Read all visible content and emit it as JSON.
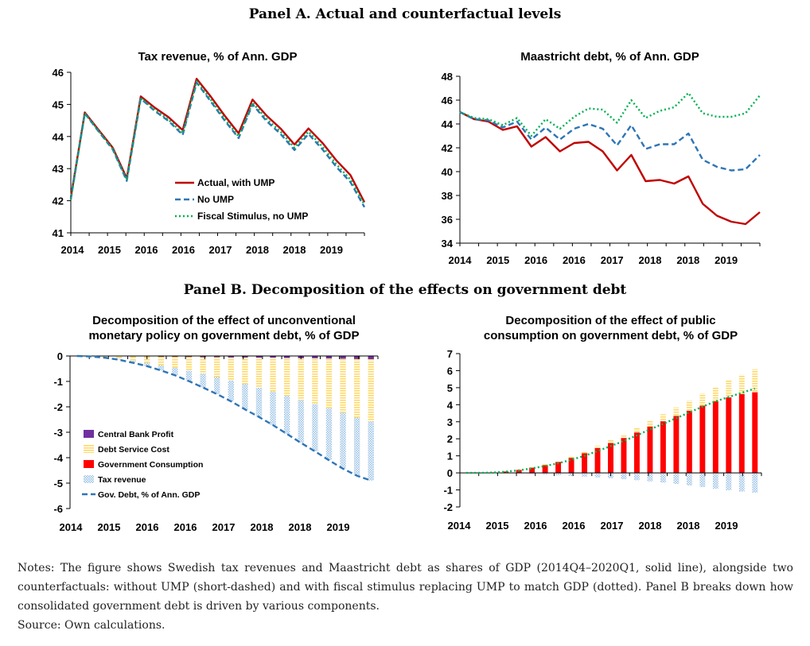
{
  "panel_a_title": "Panel A. Actual and counterfactual levels",
  "panel_b_title": "Panel B. Decomposition of the effects on government debt",
  "notes": "Notes: The figure shows Swedish tax revenues and Maastricht debt as shares of GDP (2014Q4–2020Q1, solid line), alongside two counterfactuals: without UMP (short-dashed) and with fiscal stimulus replacing UMP to match GDP (dotted). Panel B breaks down how consolidated government debt is driven by various components.",
  "source": "Source: Own calculations.",
  "colors": {
    "actual": "#c00000",
    "no_ump": "#2e75b6",
    "fiscal": "#00b050",
    "cb_profit": "#7030a0",
    "debt_service": "#ffd966",
    "gov_consumption": "#ff0000",
    "tax_revenue": "#9dc3e6",
    "gov_debt": "#2e75b6"
  },
  "chart_data": [
    {
      "id": "tax",
      "type": "line",
      "title": "Tax revenue, % of Ann. GDP",
      "xlabel": "",
      "ylabel": "",
      "x_tick_labels": [
        "2014",
        "2015",
        "2016",
        "2016",
        "2017",
        "2018",
        "2018",
        "2019"
      ],
      "ylim": [
        41,
        46
      ],
      "yticks": [
        41,
        42,
        43,
        44,
        45,
        46
      ],
      "grid": false,
      "legend_position": "bottom-center",
      "series": [
        {
          "name": "Actual, with UMP",
          "color": "#c00000",
          "style": "solid",
          "values": [
            42.1,
            44.75,
            44.2,
            43.65,
            42.7,
            45.25,
            44.9,
            44.6,
            44.2,
            45.8,
            45.25,
            44.65,
            44.1,
            45.15,
            44.65,
            44.25,
            43.75,
            44.25,
            43.8,
            43.25,
            42.8,
            41.95
          ]
        },
        {
          "name": "No UMP",
          "color": "#2e75b6",
          "style": "dashed",
          "values": [
            42.05,
            44.72,
            44.15,
            43.6,
            42.62,
            45.18,
            44.8,
            44.48,
            44.05,
            45.68,
            45.1,
            44.5,
            43.95,
            45.0,
            44.48,
            44.08,
            43.58,
            44.08,
            43.6,
            43.05,
            42.58,
            41.8
          ]
        },
        {
          "name": "Fiscal Stimulus, no UMP",
          "color": "#00b050",
          "style": "dotted",
          "values": [
            42.05,
            44.73,
            44.17,
            43.62,
            42.65,
            45.2,
            44.83,
            44.52,
            44.1,
            45.72,
            45.15,
            44.55,
            44.0,
            45.05,
            44.55,
            44.15,
            43.65,
            44.15,
            43.68,
            43.13,
            42.66,
            41.88
          ]
        }
      ]
    },
    {
      "id": "debt",
      "type": "line",
      "title": "Maastricht debt, % of Ann. GDP",
      "xlabel": "",
      "ylabel": "",
      "x_tick_labels": [
        "2014",
        "2015",
        "2016",
        "2016",
        "2017",
        "2018",
        "2018",
        "2019"
      ],
      "ylim": [
        34,
        48
      ],
      "yticks": [
        34,
        36,
        38,
        40,
        42,
        44,
        46,
        48
      ],
      "grid": false,
      "series": [
        {
          "name": "Actual, with UMP",
          "color": "#c00000",
          "style": "solid",
          "values": [
            45.0,
            44.4,
            44.2,
            43.5,
            43.8,
            42.1,
            42.9,
            41.7,
            42.4,
            42.5,
            41.7,
            40.1,
            41.4,
            39.2,
            39.3,
            39.0,
            39.6,
            37.3,
            36.3,
            35.8,
            35.6,
            36.6
          ]
        },
        {
          "name": "No UMP",
          "color": "#2e75b6",
          "style": "dashed",
          "values": [
            45.0,
            44.4,
            44.3,
            43.7,
            44.2,
            42.7,
            43.7,
            42.7,
            43.6,
            44.0,
            43.6,
            42.2,
            43.9,
            41.9,
            42.3,
            42.3,
            43.2,
            41.0,
            40.4,
            40.1,
            40.2,
            41.4
          ]
        },
        {
          "name": "Fiscal Stimulus, no UMP",
          "color": "#00b050",
          "style": "dotted",
          "values": [
            45.0,
            44.5,
            44.4,
            43.9,
            44.5,
            43.0,
            44.4,
            43.6,
            44.6,
            45.3,
            45.2,
            44.1,
            46.0,
            44.5,
            45.1,
            45.4,
            46.6,
            44.9,
            44.6,
            44.6,
            44.9,
            46.4
          ]
        }
      ]
    },
    {
      "id": "ump",
      "type": "bar",
      "title": "Decomposition of the effect of unconventional monetary policy on government debt, % of GDP",
      "title_lines": [
        "Decomposition of the effect of unconventional",
        "monetary policy on government debt, % of GDP"
      ],
      "xlabel": "",
      "ylabel": "",
      "x_tick_labels": [
        "2014",
        "2015",
        "2016",
        "2016",
        "2017",
        "2018",
        "2018",
        "2019"
      ],
      "ylim": [
        -6,
        0
      ],
      "yticks": [
        -6,
        -5,
        -4,
        -3,
        -2,
        -1,
        0
      ],
      "grid": false,
      "legend_position": "bottom-left",
      "series": [
        {
          "name": "Central Bank Profit",
          "color": "#7030a0",
          "kind": "bar",
          "pattern": "solid",
          "values": [
            0,
            0,
            0,
            0,
            -0.02,
            -0.02,
            -0.03,
            -0.03,
            -0.04,
            -0.05,
            -0.05,
            -0.06,
            -0.06,
            -0.07,
            -0.07,
            -0.08,
            -0.09,
            -0.09,
            -0.1,
            -0.11,
            -0.12,
            -0.13
          ]
        },
        {
          "name": "Debt Service Cost",
          "color": "#ffd966",
          "kind": "bar",
          "pattern": "lines",
          "values": [
            0,
            -0.02,
            -0.06,
            -0.12,
            -0.17,
            -0.25,
            -0.34,
            -0.43,
            -0.54,
            -0.65,
            -0.78,
            -0.9,
            -1.05,
            -1.18,
            -1.33,
            -1.49,
            -1.65,
            -1.8,
            -1.96,
            -2.12,
            -2.3,
            -2.45
          ]
        },
        {
          "name": "Government Consumption",
          "color": "#ff0000",
          "kind": "bar",
          "pattern": "solid",
          "values": [
            0,
            0,
            0,
            0,
            0,
            0,
            0,
            0,
            0,
            0,
            0,
            0,
            0,
            0,
            0,
            0,
            0,
            0,
            0,
            0,
            0,
            0
          ]
        },
        {
          "name": "Tax revenue",
          "color": "#9dc3e6",
          "kind": "bar",
          "pattern": "dots",
          "values": [
            0,
            0,
            -0.01,
            -0.03,
            -0.08,
            -0.13,
            -0.2,
            -0.3,
            -0.41,
            -0.54,
            -0.67,
            -0.82,
            -0.99,
            -1.15,
            -1.32,
            -1.5,
            -1.68,
            -1.86,
            -2.04,
            -2.2,
            -2.29,
            -2.32
          ]
        },
        {
          "name": "Gov. Debt, % of Ann. GDP",
          "color": "#2e75b6",
          "kind": "line",
          "style": "dashed",
          "values": [
            0,
            -0.02,
            -0.07,
            -0.15,
            -0.27,
            -0.4,
            -0.57,
            -0.76,
            -0.99,
            -1.24,
            -1.5,
            -1.78,
            -2.1,
            -2.4,
            -2.72,
            -3.07,
            -3.42,
            -3.75,
            -4.1,
            -4.43,
            -4.71,
            -4.9
          ]
        }
      ]
    },
    {
      "id": "cons",
      "type": "bar",
      "title": "Decomposition of the effect of public consumption on government debt, % of GDP",
      "title_lines": [
        "Decomposition of the effect of public",
        "consumption on government debt, % of GDP"
      ],
      "xlabel": "",
      "ylabel": "",
      "x_tick_labels": [
        "2014",
        "2015",
        "2016",
        "2016",
        "2017",
        "2018",
        "2018",
        "2019"
      ],
      "ylim": [
        -2,
        7
      ],
      "yticks": [
        -2,
        -1,
        0,
        1,
        2,
        3,
        4,
        5,
        6,
        7
      ],
      "grid": false,
      "series": [
        {
          "name": "Government Consumption",
          "color": "#ff0000",
          "kind": "bar",
          "pattern": "solid",
          "values": [
            0,
            0,
            0.02,
            0.08,
            0.17,
            0.3,
            0.45,
            0.64,
            0.88,
            1.15,
            1.46,
            1.75,
            2.05,
            2.37,
            2.71,
            3.03,
            3.34,
            3.64,
            3.94,
            4.2,
            4.43,
            4.62,
            4.73
          ]
        },
        {
          "name": "Debt Service Cost",
          "color": "#ffd966",
          "kind": "bar",
          "pattern": "lines",
          "values": [
            0,
            0,
            0,
            0.01,
            0.02,
            0.03,
            0.05,
            0.06,
            0.08,
            0.11,
            0.14,
            0.18,
            0.22,
            0.28,
            0.34,
            0.41,
            0.5,
            0.6,
            0.72,
            0.86,
            1.0,
            1.15,
            1.35
          ]
        },
        {
          "name": "Tax revenue",
          "color": "#9dc3e6",
          "kind": "bar",
          "pattern": "dots",
          "values": [
            0,
            0,
            0,
            -0.02,
            -0.04,
            -0.07,
            -0.1,
            -0.14,
            -0.18,
            -0.22,
            -0.27,
            -0.32,
            -0.37,
            -0.43,
            -0.5,
            -0.57,
            -0.65,
            -0.74,
            -0.83,
            -0.93,
            -1.02,
            -1.1,
            -1.16
          ]
        },
        {
          "name": "Gov. Debt, % of Ann. GDP",
          "color": "#00b050",
          "kind": "line",
          "style": "dotted",
          "values": [
            0,
            0,
            0.02,
            0.07,
            0.15,
            0.26,
            0.4,
            0.56,
            0.77,
            1.0,
            1.28,
            1.57,
            1.87,
            2.2,
            2.55,
            2.88,
            3.21,
            3.55,
            3.88,
            4.2,
            4.45,
            4.7,
            4.95
          ]
        }
      ]
    }
  ]
}
